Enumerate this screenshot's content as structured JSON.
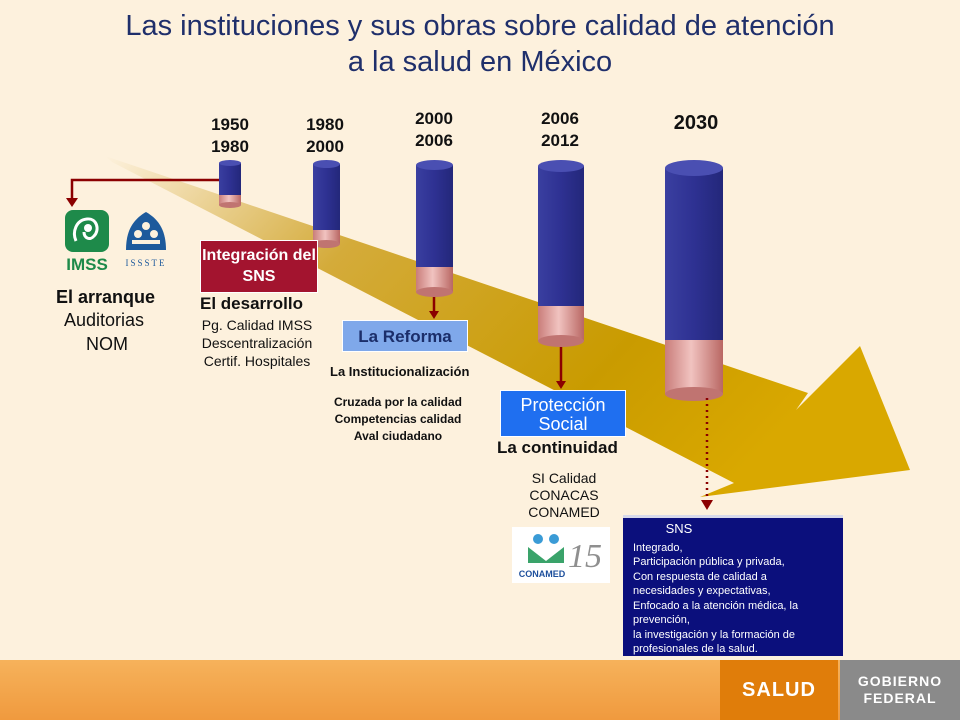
{
  "title_line1": "Las instituciones y sus obras sobre calidad de atención",
  "title_line2": "a la salud en México",
  "periods": [
    {
      "line1": "1950",
      "line2": "1980"
    },
    {
      "line1": "1980",
      "line2": "2000"
    },
    {
      "line1": "2000",
      "line2": "2006"
    },
    {
      "line1": "2006",
      "line2": "2012"
    },
    {
      "line1": "2030",
      "line2": ""
    }
  ],
  "logos": {
    "imss": "IMSS",
    "issste": "ISSSTE",
    "conamed": "CONAMED"
  },
  "arranque": {
    "heading": "El arranque",
    "items": [
      "Auditorias",
      "NOM"
    ]
  },
  "integracion": {
    "label": "Integración del SNS"
  },
  "desarrollo": {
    "heading": "El desarrollo",
    "items": [
      "Pg. Calidad IMSS",
      "Descentralización",
      "Certif. Hospitales"
    ]
  },
  "reforma": {
    "label": "La Reforma"
  },
  "institucionalizacion": {
    "heading": "La Institucionalización",
    "items": [
      "Cruzada por la calidad",
      "Competencias calidad",
      "Aval ciudadano"
    ]
  },
  "proteccion": {
    "label_line1": "Protección",
    "label_line2": "Social"
  },
  "continuidad": {
    "heading": "La continuidad",
    "items": [
      "SI Calidad",
      "CONACAS",
      "CONAMED"
    ]
  },
  "sns": {
    "title": "SNS",
    "lines": [
      "Integrado,",
      "Participación pública y privada,",
      "Con respuesta de calidad a",
      "necesidades y expectativas,",
      "Enfocado a la atención médica, la",
      "prevención,",
      "la investigación y la formación de",
      "profesionales de la salud."
    ]
  },
  "footer": {
    "salud": "SALUD",
    "gobierno_line1": "GOBIERNO",
    "gobierno_line2": "FEDERAL"
  },
  "colors": {
    "background": "#fdf1dd",
    "cylinder_blue": "#2e3192",
    "cylinder_pink": "#d99a99",
    "arrow_gold": "#d9a800",
    "dark_red": "#8b0000",
    "sns_box": "#0b0f7c"
  }
}
